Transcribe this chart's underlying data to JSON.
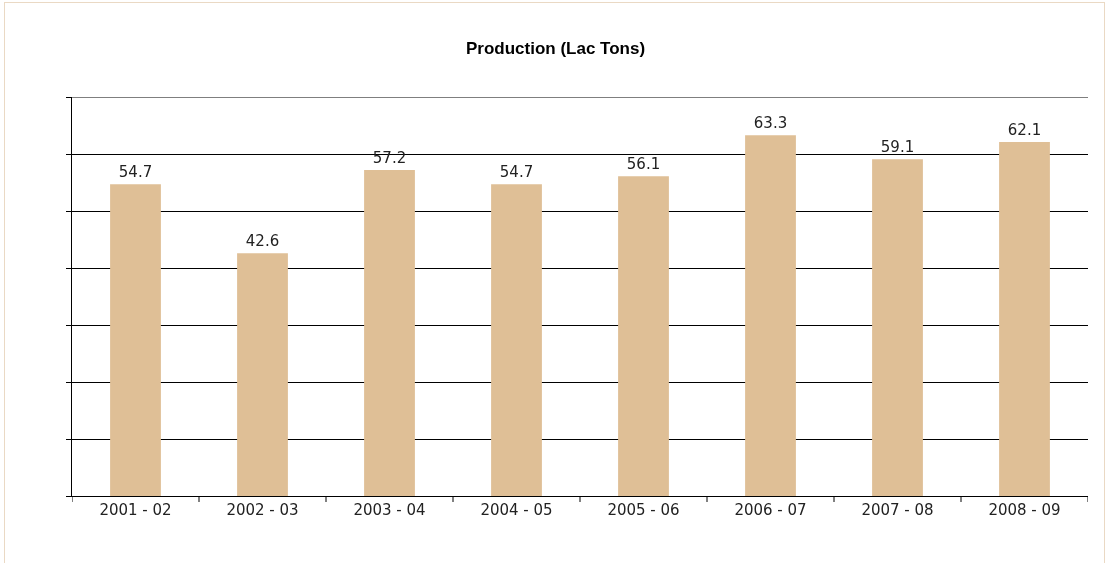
{
  "chart_data": {
    "type": "bar",
    "title": "Production (Lac Tons)",
    "categories": [
      "2001 - 02",
      "2002 - 03",
      "2003 - 04",
      "2004 - 05",
      "2005 - 06",
      "2006 - 07",
      "2007 - 08",
      "2008 - 09"
    ],
    "values": [
      54.7,
      42.6,
      57.2,
      54.7,
      56.1,
      63.3,
      59.1,
      62.1
    ],
    "color": "#dfbf96",
    "ylim": [
      0,
      70
    ],
    "yticks": [
      {
        "value": 0,
        "label": null
      },
      {
        "value": 10,
        "label": null
      },
      {
        "value": 20,
        "label": null
      },
      {
        "value": 30,
        "label": null
      },
      {
        "value": 40,
        "label": null
      },
      {
        "value": 50,
        "label": null
      },
      {
        "value": 60,
        "label": null
      },
      {
        "value": 70,
        "label": null
      }
    ],
    "tick_labels": "x",
    "grid": "y",
    "data_labels": true
  }
}
